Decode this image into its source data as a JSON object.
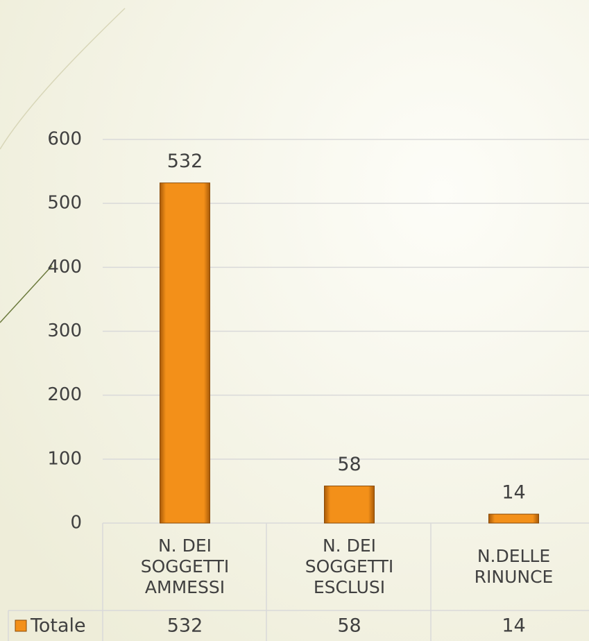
{
  "chart_data": {
    "type": "bar",
    "categories": [
      "N. DEI SOGGETTI AMMESSI",
      "N. DEI SOGGETTI ESCLUSI",
      "N.DELLE RINUNCE"
    ],
    "series": [
      {
        "name": "Totale",
        "color": "#f39019",
        "values": [
          532,
          58,
          14
        ]
      }
    ],
    "ylim": [
      0,
      600
    ],
    "yticks": [
      0,
      100,
      200,
      300,
      400,
      500,
      600
    ],
    "grid": true
  }
}
